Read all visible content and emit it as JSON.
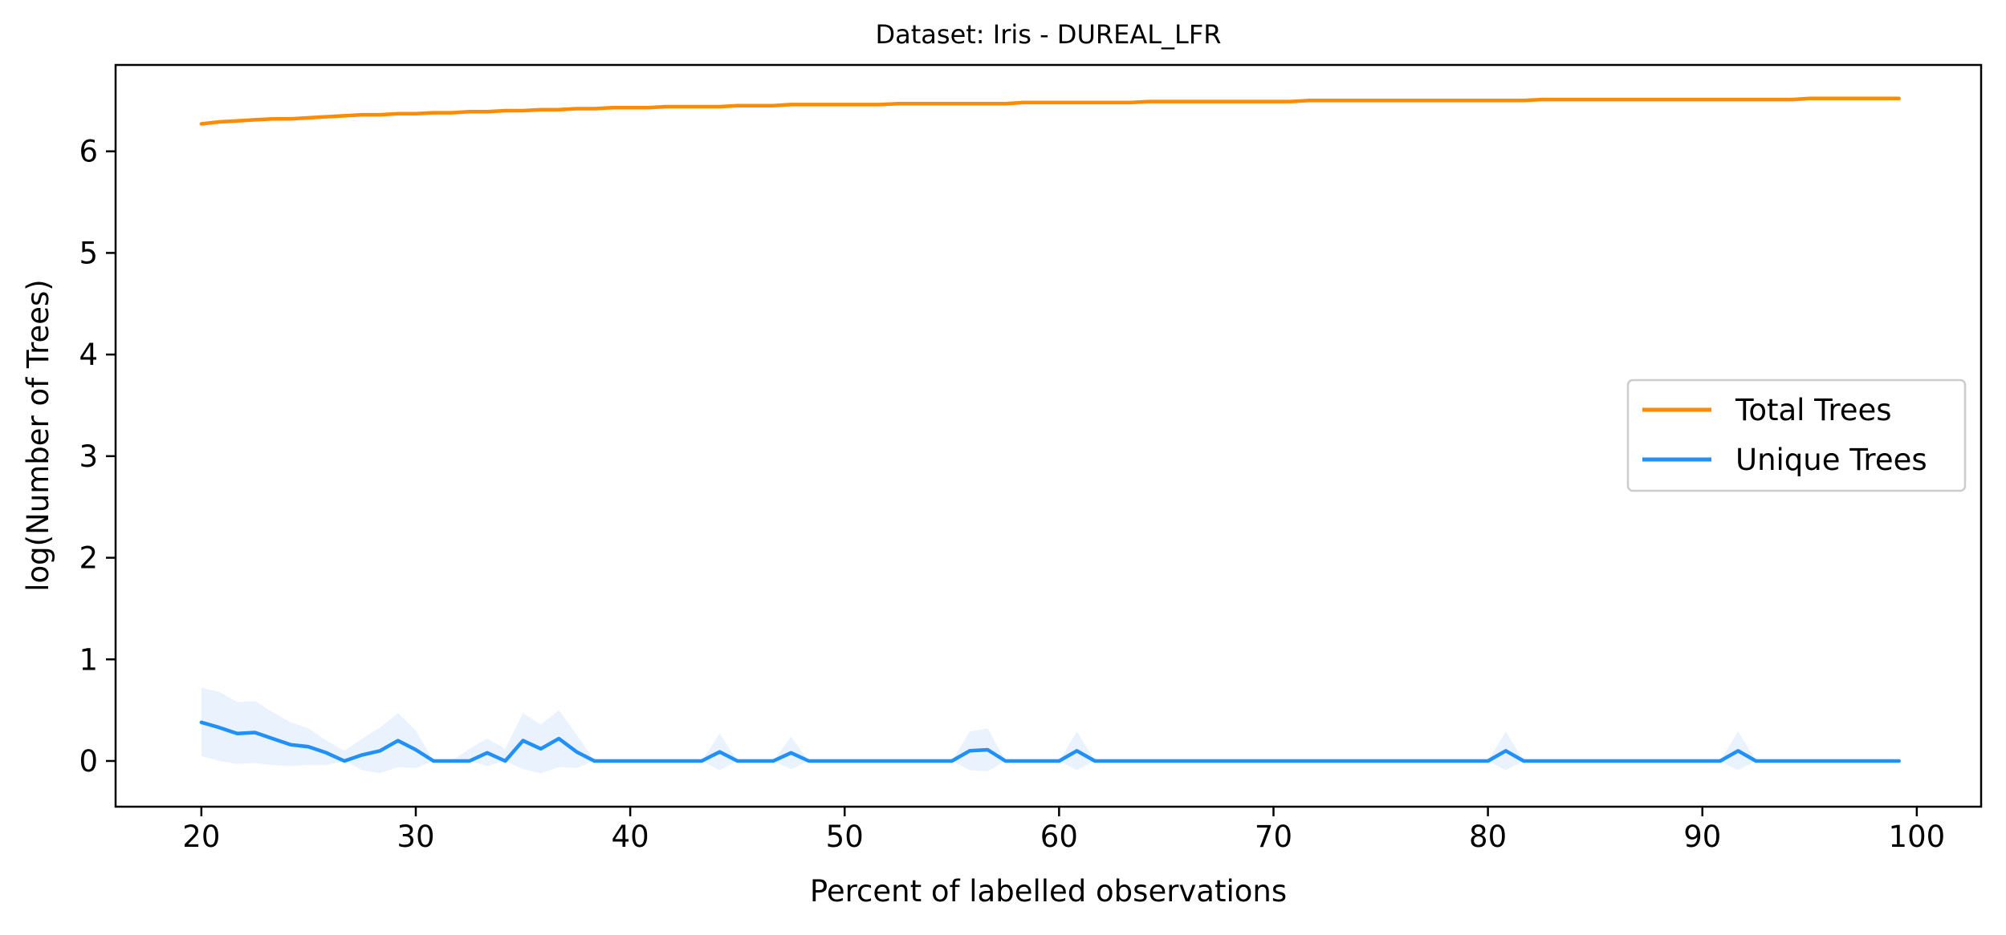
{
  "chart_data": {
    "type": "line",
    "title": "Dataset: Iris - DUREAL_LFR",
    "xlabel": "Percent of labelled observations",
    "ylabel": "log(Number of Trees)",
    "xlim": [
      16,
      103
    ],
    "ylim": [
      -0.45,
      6.85
    ],
    "xticks": [
      20,
      30,
      40,
      50,
      60,
      70,
      80,
      90,
      100
    ],
    "yticks": [
      0,
      1,
      2,
      3,
      4,
      5,
      6
    ],
    "legend_position": "center-right",
    "grid": false,
    "x": [
      20.0,
      20.83,
      21.67,
      22.5,
      23.33,
      24.17,
      25.0,
      25.83,
      26.67,
      27.5,
      28.33,
      29.17,
      30.0,
      30.83,
      31.67,
      32.5,
      33.33,
      34.17,
      35.0,
      35.83,
      36.67,
      37.5,
      38.33,
      39.17,
      40.0,
      40.83,
      41.67,
      42.5,
      43.33,
      44.17,
      45.0,
      45.83,
      46.67,
      47.5,
      48.33,
      49.17,
      50.0,
      50.83,
      51.67,
      52.5,
      53.33,
      54.17,
      55.0,
      55.83,
      56.67,
      57.5,
      58.33,
      59.17,
      60.0,
      60.83,
      61.67,
      62.5,
      63.33,
      64.17,
      65.0,
      65.83,
      66.67,
      67.5,
      68.33,
      69.17,
      70.0,
      70.83,
      71.67,
      72.5,
      73.33,
      74.17,
      75.0,
      75.83,
      76.67,
      77.5,
      78.33,
      79.17,
      80.0,
      80.83,
      81.67,
      82.5,
      83.33,
      84.17,
      85.0,
      85.83,
      86.67,
      87.5,
      88.33,
      89.17,
      90.0,
      90.83,
      91.67,
      92.5,
      93.33,
      94.17,
      95.0,
      95.83,
      96.67,
      97.5,
      98.33,
      99.17
    ],
    "series": [
      {
        "name": "Total Trees",
        "color": "#ff8c00",
        "values": [
          6.27,
          6.29,
          6.3,
          6.31,
          6.32,
          6.32,
          6.33,
          6.34,
          6.35,
          6.36,
          6.36,
          6.37,
          6.37,
          6.38,
          6.38,
          6.39,
          6.39,
          6.4,
          6.4,
          6.41,
          6.41,
          6.42,
          6.42,
          6.43,
          6.43,
          6.43,
          6.44,
          6.44,
          6.44,
          6.44,
          6.45,
          6.45,
          6.45,
          6.46,
          6.46,
          6.46,
          6.46,
          6.46,
          6.46,
          6.47,
          6.47,
          6.47,
          6.47,
          6.47,
          6.47,
          6.47,
          6.48,
          6.48,
          6.48,
          6.48,
          6.48,
          6.48,
          6.48,
          6.49,
          6.49,
          6.49,
          6.49,
          6.49,
          6.49,
          6.49,
          6.49,
          6.49,
          6.5,
          6.5,
          6.5,
          6.5,
          6.5,
          6.5,
          6.5,
          6.5,
          6.5,
          6.5,
          6.5,
          6.5,
          6.5,
          6.51,
          6.51,
          6.51,
          6.51,
          6.51,
          6.51,
          6.51,
          6.51,
          6.51,
          6.51,
          6.51,
          6.51,
          6.51,
          6.51,
          6.51,
          6.52,
          6.52,
          6.52,
          6.52,
          6.52,
          6.52
        ]
      },
      {
        "name": "Unique Trees",
        "color": "#1e90ff",
        "band_color": "#dbeafc",
        "values": [
          0.38,
          0.33,
          0.27,
          0.28,
          0.22,
          0.16,
          0.14,
          0.08,
          0.0,
          0.06,
          0.1,
          0.2,
          0.11,
          0.0,
          0.0,
          0.0,
          0.08,
          0.0,
          0.2,
          0.12,
          0.22,
          0.09,
          0.0,
          0.0,
          0.0,
          0.0,
          0.0,
          0.0,
          0.0,
          0.09,
          0.0,
          0.0,
          0.0,
          0.08,
          0.0,
          0.0,
          0.0,
          0.0,
          0.0,
          0.0,
          0.0,
          0.0,
          0.0,
          0.1,
          0.11,
          0.0,
          0.0,
          0.0,
          0.0,
          0.1,
          0.0,
          0.0,
          0.0,
          0.0,
          0.0,
          0.0,
          0.0,
          0.0,
          0.0,
          0.0,
          0.0,
          0.0,
          0.0,
          0.0,
          0.0,
          0.0,
          0.0,
          0.0,
          0.0,
          0.0,
          0.0,
          0.0,
          0.0,
          0.1,
          0.0,
          0.0,
          0.0,
          0.0,
          0.0,
          0.0,
          0.0,
          0.0,
          0.0,
          0.0,
          0.0,
          0.0,
          0.1,
          0.0,
          0.0,
          0.0,
          0.0,
          0.0,
          0.0,
          0.0,
          0.0,
          0.0
        ],
        "upper": [
          0.72,
          0.68,
          0.58,
          0.59,
          0.48,
          0.38,
          0.32,
          0.2,
          0.1,
          0.22,
          0.33,
          0.47,
          0.3,
          0.0,
          0.0,
          0.12,
          0.22,
          0.12,
          0.47,
          0.36,
          0.5,
          0.26,
          0.0,
          0.0,
          0.0,
          0.0,
          0.0,
          0.0,
          0.0,
          0.27,
          0.0,
          0.0,
          0.0,
          0.24,
          0.0,
          0.0,
          0.0,
          0.0,
          0.0,
          0.0,
          0.0,
          0.0,
          0.0,
          0.29,
          0.32,
          0.0,
          0.0,
          0.0,
          0.0,
          0.29,
          0.0,
          0.0,
          0.0,
          0.0,
          0.0,
          0.0,
          0.0,
          0.0,
          0.0,
          0.0,
          0.0,
          0.0,
          0.0,
          0.0,
          0.0,
          0.0,
          0.0,
          0.0,
          0.0,
          0.0,
          0.0,
          0.0,
          0.0,
          0.29,
          0.0,
          0.0,
          0.0,
          0.0,
          0.0,
          0.0,
          0.0,
          0.0,
          0.0,
          0.0,
          0.0,
          0.0,
          0.29,
          0.0,
          0.0,
          0.0,
          0.0,
          0.0,
          0.0,
          0.0,
          0.0,
          0.0
        ],
        "lower": [
          0.05,
          0.0,
          -0.03,
          -0.02,
          -0.04,
          -0.05,
          -0.04,
          -0.04,
          0.0,
          -0.09,
          -0.12,
          -0.06,
          -0.07,
          0.0,
          0.0,
          0.0,
          -0.05,
          0.0,
          -0.08,
          -0.12,
          -0.06,
          -0.07,
          0.0,
          0.0,
          0.0,
          0.0,
          0.0,
          0.0,
          0.0,
          -0.09,
          0.0,
          0.0,
          0.0,
          -0.08,
          0.0,
          0.0,
          0.0,
          0.0,
          0.0,
          0.0,
          0.0,
          0.0,
          0.0,
          -0.09,
          -0.1,
          0.0,
          0.0,
          0.0,
          0.0,
          -0.09,
          0.0,
          0.0,
          0.0,
          0.0,
          0.0,
          0.0,
          0.0,
          0.0,
          0.0,
          0.0,
          0.0,
          0.0,
          0.0,
          0.0,
          0.0,
          0.0,
          0.0,
          0.0,
          0.0,
          0.0,
          0.0,
          0.0,
          0.0,
          -0.09,
          0.0,
          0.0,
          0.0,
          0.0,
          0.0,
          0.0,
          0.0,
          0.0,
          0.0,
          0.0,
          0.0,
          0.0,
          -0.09,
          0.0,
          0.0,
          0.0,
          0.0,
          0.0,
          0.0,
          0.0,
          0.0,
          0.0
        ]
      }
    ]
  }
}
